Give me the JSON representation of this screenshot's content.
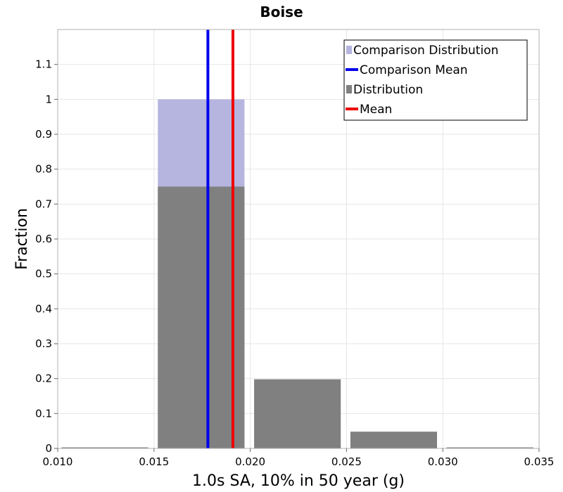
{
  "chart_data": {
    "type": "bar",
    "title": "Boise",
    "xlabel": "1.0s SA, 10% in 50 year (g)",
    "ylabel": "Fraction",
    "xlim": [
      0.01,
      0.035
    ],
    "ylim": [
      0,
      1.2
    ],
    "x_ticks": [
      "0.010",
      "0.015",
      "0.020",
      "0.025",
      "0.030",
      "0.035"
    ],
    "x_tick_values": [
      0.01,
      0.015,
      0.02,
      0.025,
      0.03,
      0.035
    ],
    "y_ticks": [
      "0",
      "0.1",
      "0.2",
      "0.3",
      "0.4",
      "0.5",
      "0.6",
      "0.7",
      "0.8",
      "0.9",
      "1",
      "1.1"
    ],
    "y_tick_values": [
      0,
      0.1,
      0.2,
      0.3,
      0.4,
      0.5,
      0.6,
      0.7,
      0.8,
      0.9,
      1.0,
      1.1
    ],
    "grid": true,
    "legend_position": "top-right",
    "series": [
      {
        "name": "Comparison Distribution",
        "kind": "bar",
        "color": "#b5b5df",
        "bins": [
          {
            "x0": 0.0152,
            "x1": 0.0197,
            "y": 1.0
          }
        ]
      },
      {
        "name": "Distribution",
        "kind": "bar",
        "color": "#808080",
        "bins": [
          {
            "x0": 0.0102,
            "x1": 0.0147,
            "y": 0.003
          },
          {
            "x0": 0.0152,
            "x1": 0.0197,
            "y": 0.75
          },
          {
            "x0": 0.0202,
            "x1": 0.0247,
            "y": 0.198
          },
          {
            "x0": 0.0252,
            "x1": 0.0297,
            "y": 0.048
          },
          {
            "x0": 0.0302,
            "x1": 0.0347,
            "y": 0.003
          }
        ]
      },
      {
        "name": "Comparison Mean",
        "kind": "vline",
        "color": "#0000ee",
        "x": 0.0178
      },
      {
        "name": "Mean",
        "kind": "vline",
        "color": "#ee0000",
        "x": 0.0191
      }
    ],
    "legend_order": [
      "Comparison Distribution",
      "Comparison Mean",
      "Distribution",
      "Mean"
    ]
  }
}
